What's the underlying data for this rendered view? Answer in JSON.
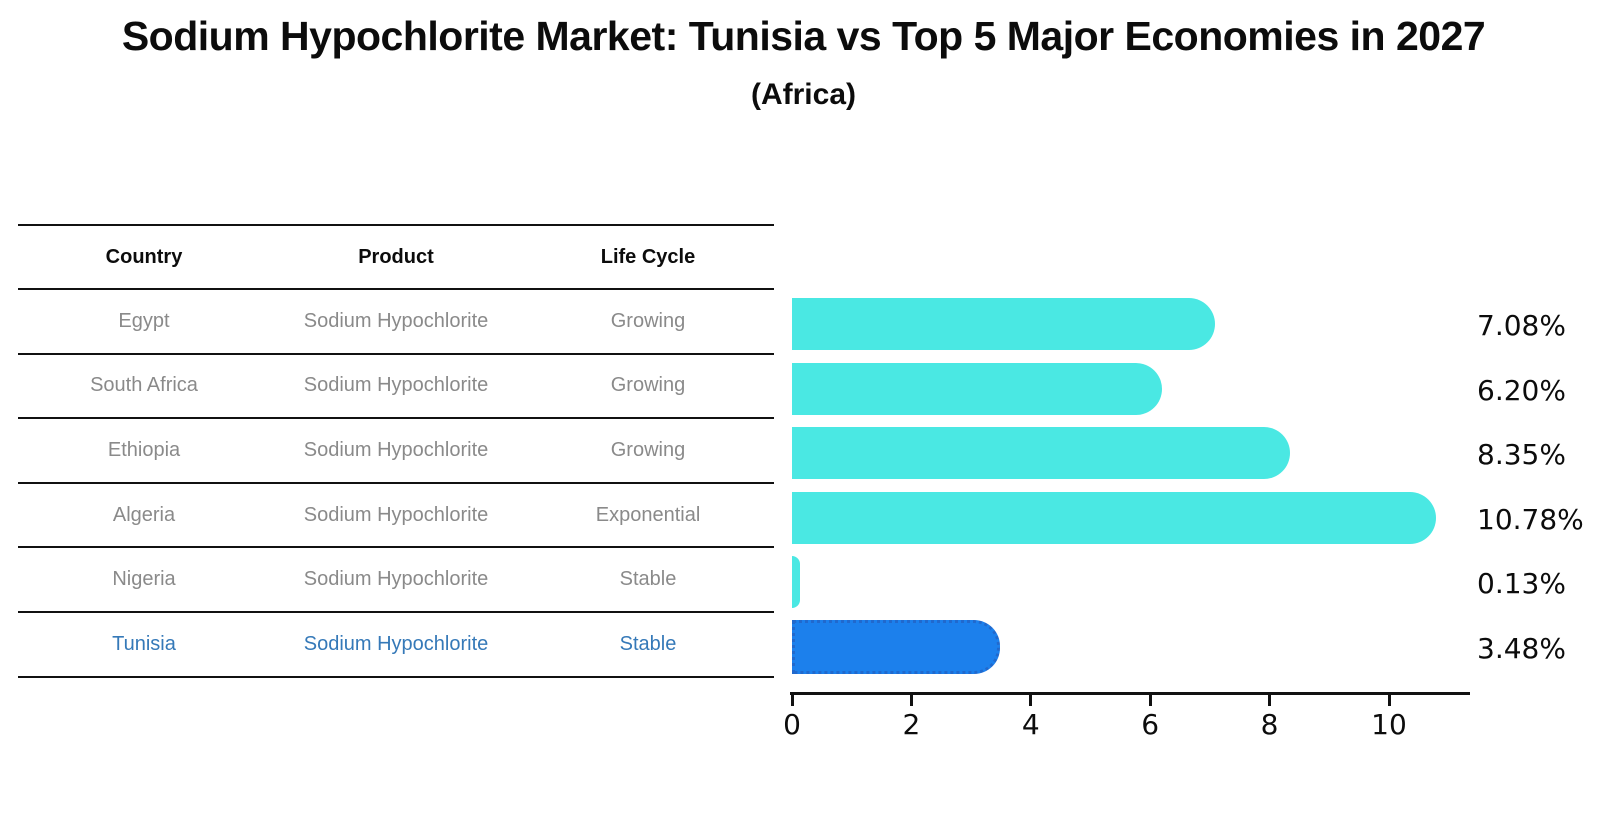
{
  "title": "Sodium Hypochlorite Market: Tunisia vs Top 5 Major Economies in 2027",
  "subtitle": "(Africa)",
  "table": {
    "headers": [
      "Country",
      "Product",
      "Life Cycle"
    ],
    "rows": [
      {
        "country": "Egypt",
        "product": "Sodium Hypochlorite",
        "life_cycle": "Growing",
        "highlight": false
      },
      {
        "country": "South Africa",
        "product": "Sodium Hypochlorite",
        "life_cycle": "Growing",
        "highlight": false
      },
      {
        "country": "Ethiopia",
        "product": "Sodium Hypochlorite",
        "life_cycle": "Growing",
        "highlight": false
      },
      {
        "country": "Algeria",
        "product": "Sodium Hypochlorite",
        "life_cycle": "Exponential",
        "highlight": false
      },
      {
        "country": "Nigeria",
        "product": "Sodium Hypochlorite",
        "life_cycle": "Stable",
        "highlight": false
      },
      {
        "country": "Tunisia",
        "product": "Sodium Hypochlorite",
        "life_cycle": "Stable",
        "highlight": true
      }
    ]
  },
  "chart_data": {
    "type": "bar",
    "orientation": "horizontal",
    "categories": [
      "Egypt",
      "South Africa",
      "Ethiopia",
      "Algeria",
      "Nigeria",
      "Tunisia"
    ],
    "values": [
      7.08,
      6.2,
      8.35,
      10.78,
      0.13,
      3.48
    ],
    "value_labels": [
      "7.08%",
      "6.20%",
      "8.35%",
      "10.78%",
      "0.13%",
      "3.48%"
    ],
    "x_ticks": [
      0,
      2,
      4,
      6,
      8,
      10
    ],
    "xlim": [
      0,
      11.35
    ],
    "grid": false,
    "legend": null,
    "highlight_category": "Tunisia",
    "title": "Sodium Hypochlorite Market: Tunisia vs Top 5 Major Economies in 2027 (Africa)",
    "xlabel": "",
    "ylabel": ""
  },
  "colors": {
    "bar": "#4ae8e3",
    "highlight_bar": "#1c80ec",
    "highlight_bar_border": "#2169cd",
    "row_text": "#8a8a8a",
    "highlight_text": "#3579b8",
    "axis": "#111111"
  }
}
